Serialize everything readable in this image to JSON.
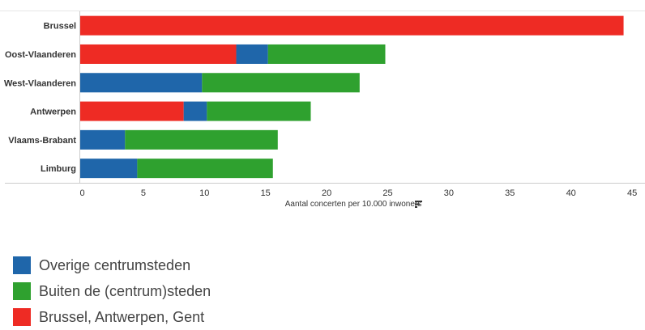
{
  "chart_data": {
    "type": "bar",
    "orientation": "horizontal",
    "stacked": true,
    "categories": [
      "Brussel",
      "Oost-Vlaanderen",
      "West-Vlaanderen",
      "Antwerpen",
      "Vlaams-Brabant",
      "Limburg"
    ],
    "series": [
      {
        "name": "Brussel, Antwerpen, Gent",
        "color": "#ee2b24",
        "values": [
          44.5,
          12.8,
          0,
          8.5,
          0,
          0
        ]
      },
      {
        "name": "Overige centrumsteden",
        "color": "#1f66aa",
        "values": [
          0,
          2.6,
          10.0,
          1.9,
          3.7,
          4.7
        ]
      },
      {
        "name": "Buiten de (centrum)steden",
        "color": "#2fa12f",
        "values": [
          0,
          9.6,
          12.9,
          8.5,
          12.5,
          11.1
        ]
      }
    ],
    "xlabel": "Aantal concerten per 10.000 inwoners",
    "xlim": [
      0,
      46
    ],
    "xticks": [
      0,
      5,
      10,
      15,
      20,
      25,
      30,
      35,
      40,
      45
    ],
    "grid": false,
    "legend_position": "bottom-left"
  },
  "legend": {
    "items": [
      {
        "label": "Overige centrumsteden",
        "color": "#1f66aa"
      },
      {
        "label": "Buiten de (centrum)steden",
        "color": "#2fa12f"
      },
      {
        "label": "Brussel, Antwerpen, Gent",
        "color": "#ee2b24"
      }
    ]
  },
  "icons": {
    "axis_sort_icon": "sort-icon"
  }
}
